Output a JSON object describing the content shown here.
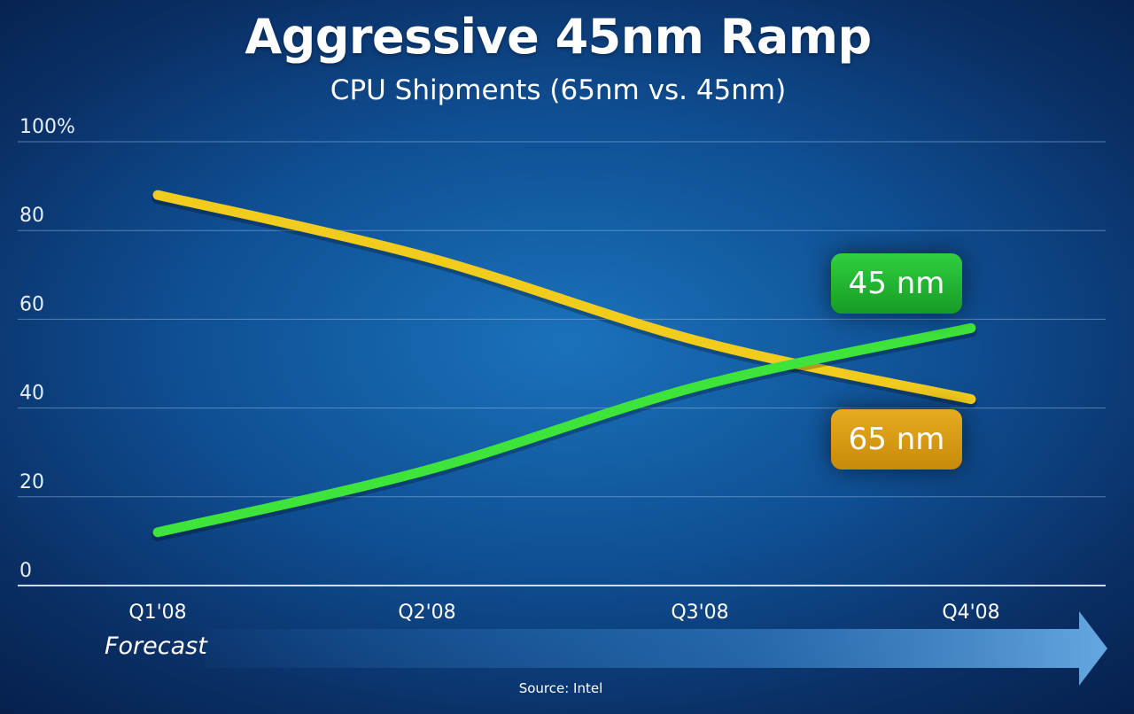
{
  "title": "Aggressive 45nm Ramp",
  "subtitle": "CPU Shipments (65nm vs. 45nm)",
  "forecast_label": "Forecast",
  "source": "Source: Intel",
  "colors": {
    "series_65nm": "#f2cc1d",
    "series_45nm": "#3fe43a",
    "background": "#0f4f93"
  },
  "chart_data": {
    "type": "line",
    "x": [
      "Q1'08",
      "Q2'08",
      "Q3'08",
      "Q4'08"
    ],
    "y_ticks": [
      "0",
      "20",
      "40",
      "60",
      "80",
      "100%"
    ],
    "ylim": [
      0,
      100
    ],
    "grid": true,
    "series": [
      {
        "name": "65 nm",
        "values": [
          88,
          74,
          55,
          42
        ]
      },
      {
        "name": "45 nm",
        "values": [
          12,
          26,
          45,
          58
        ]
      }
    ]
  }
}
